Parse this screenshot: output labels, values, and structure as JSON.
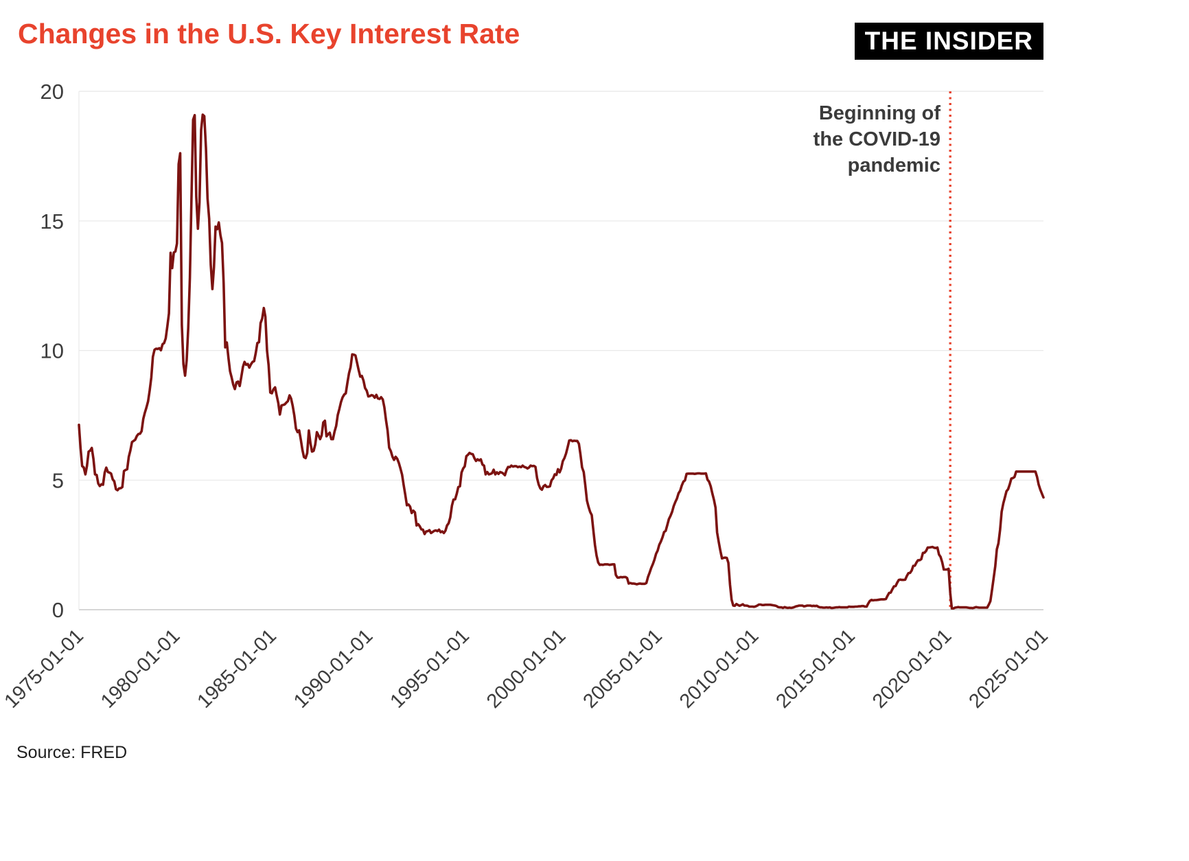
{
  "header": {
    "title": "Changes in the U.S. Key Interest Rate",
    "logo": "THE INSIDER"
  },
  "footer": {
    "source": "Source: FRED"
  },
  "annotation": {
    "lines": [
      "Beginning of",
      "the COVID-19",
      "pandemic"
    ]
  },
  "colors": {
    "title": "#e8432d",
    "line": "#7c1311",
    "marker": "#e8432d",
    "grid": "#e8e8e8",
    "axis_line": "#c9c9c9",
    "axis_text": "#3d3d3d"
  },
  "chart_data": {
    "type": "line",
    "title": "Changes in the U.S. Key Interest Rate",
    "source": "FRED",
    "x_start_year": 1975,
    "x_interval": "monthly",
    "xlim": [
      1975,
      2025
    ],
    "ylim": [
      0,
      20
    ],
    "y_ticks": [
      0,
      5,
      10,
      15,
      20
    ],
    "x_tick_labels": [
      "1975-01-01",
      "1980-01-01",
      "1985-01-01",
      "1990-01-01",
      "1995-01-01",
      "2000-01-01",
      "2005-01-01",
      "2010-01-01",
      "2015-01-01",
      "2020-01-01",
      "2025-01-01"
    ],
    "grid": true,
    "legend": false,
    "annotation": {
      "text": "Beginning of the COVID-19 pandemic",
      "x": "2020-03-01"
    },
    "series": [
      {
        "name": "U.S. key interest rate (%)",
        "values": [
          7.13,
          6.24,
          5.54,
          5.49,
          5.22,
          5.55,
          6.1,
          6.14,
          6.24,
          5.82,
          5.22,
          5.2,
          4.87,
          4.77,
          4.84,
          4.82,
          5.29,
          5.48,
          5.31,
          5.29,
          5.25,
          5.03,
          4.95,
          4.65,
          4.61,
          4.68,
          4.69,
          4.73,
          5.35,
          5.39,
          5.42,
          5.9,
          6.14,
          6.47,
          6.51,
          6.56,
          6.7,
          6.78,
          6.79,
          6.89,
          7.36,
          7.6,
          7.81,
          8.04,
          8.45,
          8.96,
          9.76,
          10.03,
          10.07,
          10.06,
          10.09,
          10.01,
          10.24,
          10.29,
          10.47,
          10.94,
          11.43,
          13.77,
          13.18,
          13.78,
          13.82,
          14.13,
          17.19,
          17.61,
          10.98,
          9.47,
          9.03,
          9.61,
          10.87,
          12.81,
          15.85,
          18.9,
          19.08,
          15.93,
          14.7,
          15.72,
          18.52,
          19.1,
          19.04,
          17.82,
          15.87,
          15.08,
          13.31,
          12.37,
          13.22,
          14.78,
          14.68,
          14.94,
          14.45,
          14.15,
          12.59,
          10.12,
          10.31,
          9.71,
          9.2,
          8.95,
          8.68,
          8.51,
          8.77,
          8.8,
          8.63,
          8.98,
          9.37,
          9.56,
          9.45,
          9.48,
          9.34,
          9.47,
          9.56,
          9.59,
          9.91,
          10.29,
          10.32,
          11.06,
          11.23,
          11.64,
          11.3,
          9.99,
          9.43,
          8.38,
          8.35,
          8.5,
          8.58,
          8.27,
          7.97,
          7.53,
          7.88,
          7.9,
          7.92,
          7.99,
          8.05,
          8.27,
          8.14,
          7.86,
          7.48,
          6.99,
          6.85,
          6.92,
          6.56,
          6.17,
          5.89,
          5.85,
          6.04,
          6.91,
          6.43,
          6.1,
          6.13,
          6.37,
          6.85,
          6.73,
          6.58,
          6.73,
          7.22,
          7.29,
          6.69,
          6.77,
          6.83,
          6.58,
          6.58,
          6.87,
          7.09,
          7.51,
          7.75,
          8.01,
          8.19,
          8.3,
          8.35,
          8.76,
          9.12,
          9.36,
          9.85,
          9.84,
          9.81,
          9.53,
          9.24,
          8.99,
          9.02,
          8.84,
          8.55,
          8.45,
          8.23,
          8.24,
          8.28,
          8.26,
          8.18,
          8.29,
          8.15,
          8.13,
          8.2,
          8.11,
          7.81,
          7.31,
          6.91,
          6.25,
          6.12,
          5.91,
          5.78,
          5.9,
          5.82,
          5.66,
          5.45,
          5.21,
          4.81,
          4.43,
          4.03,
          4.06,
          3.98,
          3.73,
          3.82,
          3.76,
          3.25,
          3.3,
          3.22,
          3.1,
          3.09,
          2.92,
          3.02,
          3.03,
          3.07,
          2.96,
          3.0,
          3.04,
          3.06,
          3.03,
          3.09,
          2.99,
          3.02,
          2.96,
          3.05,
          3.25,
          3.34,
          3.56,
          4.01,
          4.25,
          4.26,
          4.47,
          4.73,
          4.76,
          5.29,
          5.45,
          5.53,
          5.92,
          5.98,
          6.05,
          6.01,
          6.0,
          5.85,
          5.74,
          5.8,
          5.76,
          5.8,
          5.6,
          5.56,
          5.22,
          5.31,
          5.22,
          5.24,
          5.27,
          5.4,
          5.22,
          5.3,
          5.24,
          5.31,
          5.29,
          5.25,
          5.19,
          5.39,
          5.51,
          5.5,
          5.56,
          5.52,
          5.54,
          5.54,
          5.5,
          5.52,
          5.5,
          5.56,
          5.51,
          5.49,
          5.45,
          5.49,
          5.56,
          5.54,
          5.55,
          5.51,
          5.07,
          4.83,
          4.68,
          4.63,
          4.76,
          4.81,
          4.74,
          4.74,
          4.76,
          4.99,
          5.07,
          5.22,
          5.2,
          5.42,
          5.3,
          5.45,
          5.73,
          5.85,
          6.02,
          6.27,
          6.53,
          6.54,
          6.5,
          6.52,
          6.51,
          6.51,
          6.4,
          5.98,
          5.49,
          5.31,
          4.8,
          4.21,
          3.97,
          3.77,
          3.65,
          3.07,
          2.49,
          2.09,
          1.82,
          1.73,
          1.74,
          1.73,
          1.75,
          1.75,
          1.75,
          1.73,
          1.74,
          1.75,
          1.75,
          1.34,
          1.24,
          1.24,
          1.26,
          1.25,
          1.26,
          1.26,
          1.22,
          1.01,
          1.03,
          1.01,
          1.01,
          1.0,
          0.98,
          1.0,
          1.01,
          1.0,
          1.0,
          1.0,
          1.03,
          1.26,
          1.43,
          1.61,
          1.76,
          1.93,
          2.16,
          2.28,
          2.5,
          2.63,
          2.79,
          3.0,
          3.04,
          3.26,
          3.5,
          3.62,
          3.78,
          4.0,
          4.16,
          4.29,
          4.49,
          4.59,
          4.79,
          4.94,
          4.99,
          5.24,
          5.25,
          5.25,
          5.25,
          5.25,
          5.24,
          5.25,
          5.26,
          5.26,
          5.25,
          5.25,
          5.25,
          5.26,
          5.02,
          4.94,
          4.76,
          4.49,
          4.24,
          3.94,
          2.98,
          2.61,
          2.28,
          1.98,
          2.0,
          2.01,
          2.0,
          1.81,
          0.97,
          0.39,
          0.16,
          0.15,
          0.22,
          0.18,
          0.15,
          0.18,
          0.21,
          0.16,
          0.16,
          0.15,
          0.12,
          0.12,
          0.12,
          0.11,
          0.13,
          0.16,
          0.2,
          0.2,
          0.18,
          0.18,
          0.19,
          0.19,
          0.19,
          0.19,
          0.18,
          0.17,
          0.16,
          0.14,
          0.1,
          0.09,
          0.09,
          0.07,
          0.1,
          0.08,
          0.07,
          0.08,
          0.07,
          0.08,
          0.1,
          0.13,
          0.14,
          0.16,
          0.16,
          0.16,
          0.13,
          0.14,
          0.16,
          0.16,
          0.16,
          0.14,
          0.15,
          0.14,
          0.15,
          0.11,
          0.09,
          0.09,
          0.08,
          0.08,
          0.09,
          0.08,
          0.09,
          0.07,
          0.07,
          0.08,
          0.09,
          0.09,
          0.1,
          0.09,
          0.09,
          0.09,
          0.09,
          0.09,
          0.12,
          0.11,
          0.11,
          0.11,
          0.12,
          0.12,
          0.13,
          0.13,
          0.14,
          0.14,
          0.12,
          0.12,
          0.24,
          0.34,
          0.38,
          0.36,
          0.37,
          0.37,
          0.38,
          0.39,
          0.4,
          0.4,
          0.4,
          0.41,
          0.54,
          0.65,
          0.66,
          0.79,
          0.9,
          0.91,
          1.04,
          1.15,
          1.16,
          1.15,
          1.15,
          1.16,
          1.3,
          1.41,
          1.42,
          1.51,
          1.69,
          1.7,
          1.82,
          1.91,
          1.91,
          1.95,
          2.19,
          2.2,
          2.27,
          2.4,
          2.4,
          2.41,
          2.42,
          2.39,
          2.38,
          2.4,
          2.13,
          2.04,
          1.83,
          1.55,
          1.55,
          1.55,
          1.58,
          0.65,
          0.05,
          0.05,
          0.08,
          0.09,
          0.1,
          0.09,
          0.09,
          0.09,
          0.09,
          0.09,
          0.08,
          0.07,
          0.07,
          0.06,
          0.08,
          0.1,
          0.09,
          0.08,
          0.08,
          0.08,
          0.08,
          0.08,
          0.08,
          0.2,
          0.33,
          0.77,
          1.21,
          1.68,
          2.33,
          2.56,
          3.08,
          3.78,
          4.1,
          4.33,
          4.57,
          4.65,
          4.83,
          5.06,
          5.08,
          5.12,
          5.33,
          5.33,
          5.33,
          5.33,
          5.33,
          5.33,
          5.33,
          5.33,
          5.33,
          5.33,
          5.33,
          5.33,
          5.33,
          5.13,
          4.83,
          4.64,
          4.48,
          4.33
        ]
      }
    ]
  }
}
